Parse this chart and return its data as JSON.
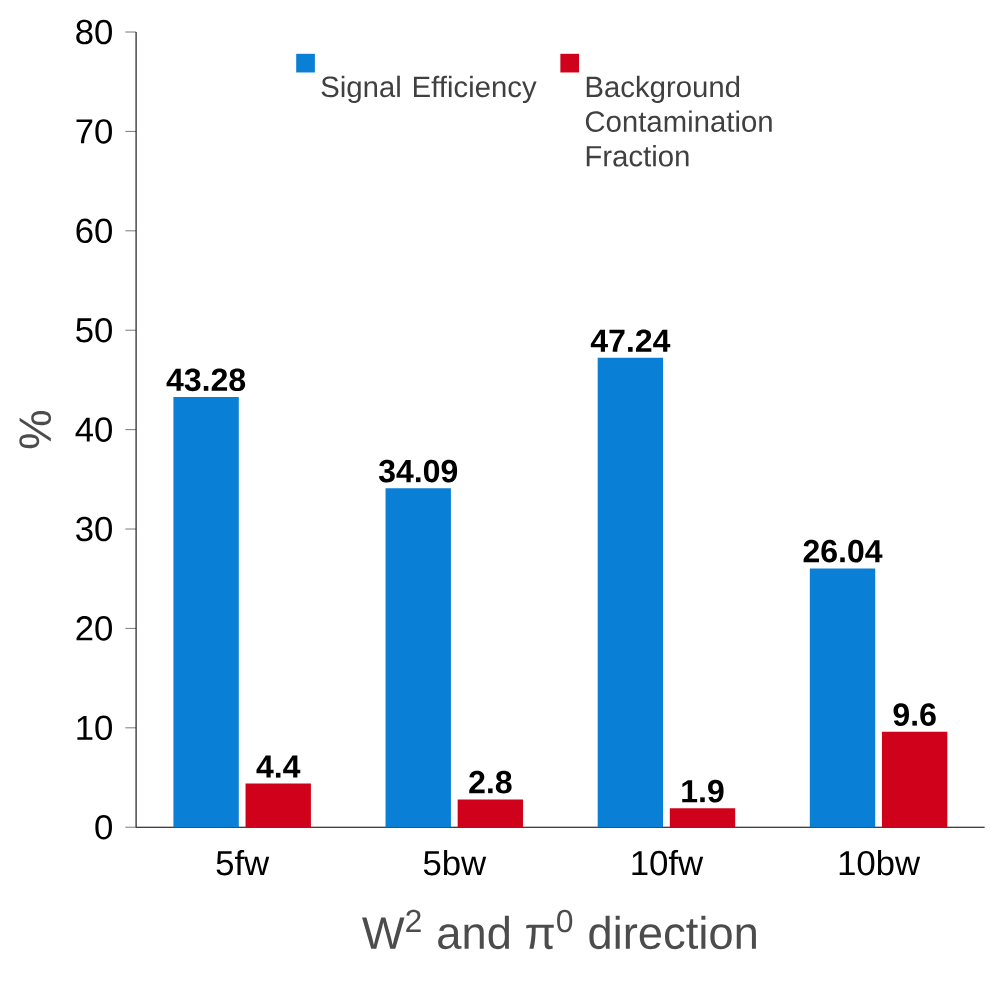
{
  "chart_data": {
    "type": "bar",
    "xlabel": "W$^{2}$ and π$^{0}$ direction",
    "ylabel": "%",
    "categories": [
      "5fw",
      "5bw",
      "10fw",
      "10bw"
    ],
    "series": [
      {
        "name": "Signal Efficiency",
        "color": "#0a7fd6",
        "values": [
          43.28,
          34.09,
          47.24,
          26.04
        ],
        "value_labels": [
          "43.28",
          "34.09",
          "47.24",
          "26.04"
        ]
      },
      {
        "name": "Background Contamination Fraction",
        "color": "#d0021b",
        "values": [
          4.4,
          2.8,
          1.9,
          9.6
        ],
        "value_labels": [
          "4.4",
          "2.8",
          "1.9",
          "9.6"
        ]
      }
    ],
    "ylim": [
      0,
      80
    ],
    "yticks": [
      0,
      10,
      20,
      30,
      40,
      50,
      60,
      70,
      80
    ],
    "grid": false,
    "legend": "top"
  }
}
